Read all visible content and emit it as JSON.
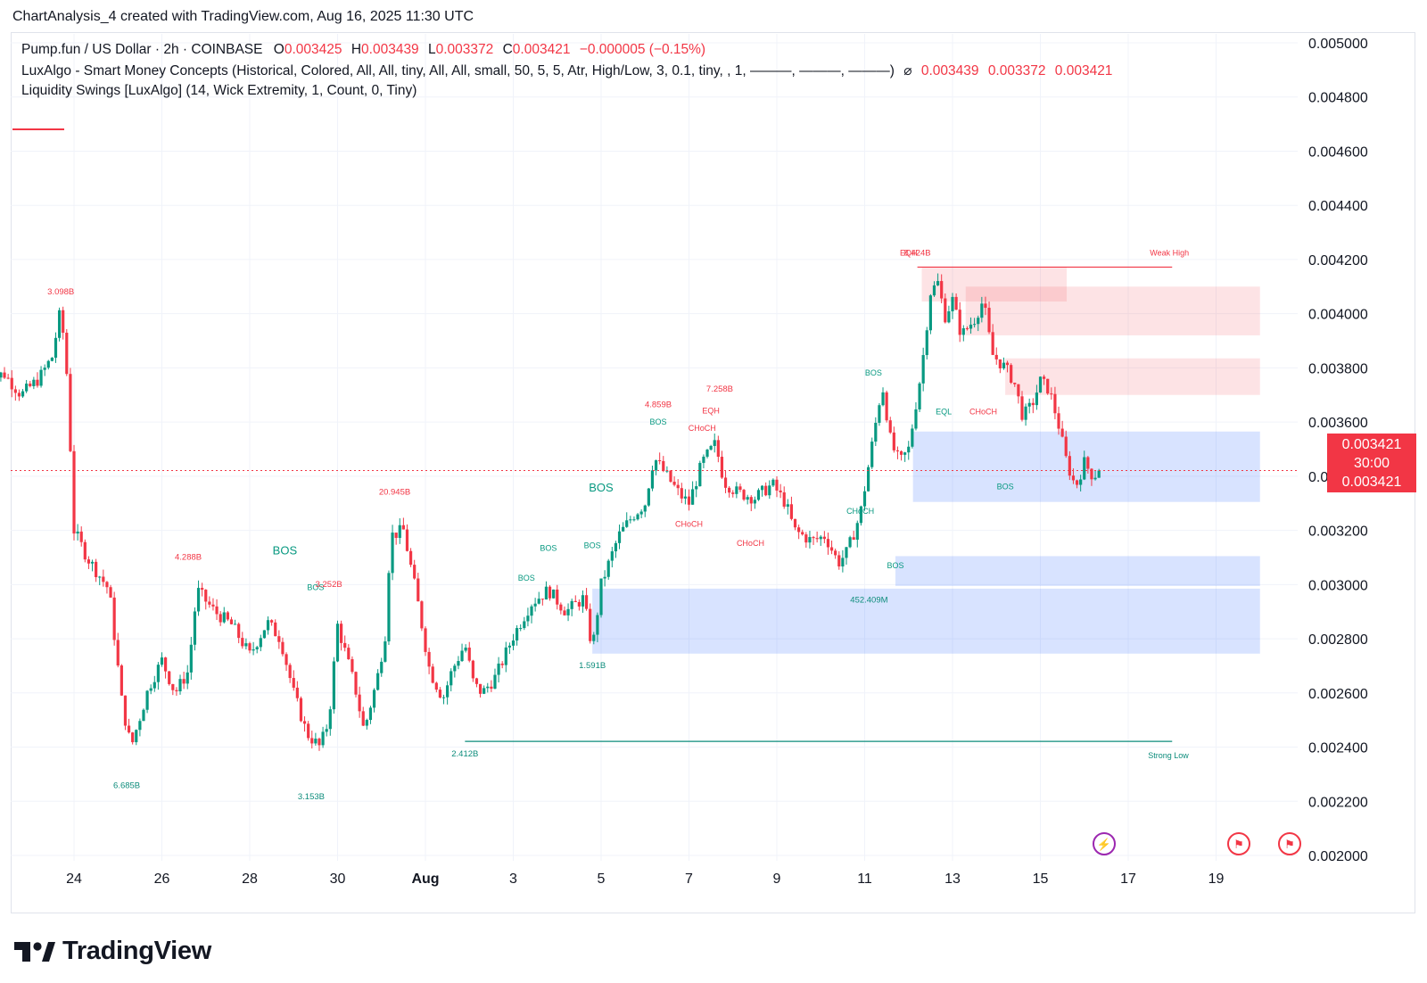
{
  "header": {
    "credit": "ChartAnalysis_4 created with TradingView.com, Aug 16, 2025 11:30 UTC"
  },
  "legend": {
    "symbol": "Pump.fun / US Dollar · 2h · COINBASE",
    "o_label": "O",
    "o_value": "0.003425",
    "h_label": "H",
    "h_value": "0.003439",
    "l_label": "L",
    "l_value": "0.003372",
    "c_label": "C",
    "c_value": "0.003421",
    "change": "−0.000005 (−0.15%)",
    "indicator1": "LuxAlgo - Smart Money Concepts (Historical, Colored, All, All, tiny, All, All, small, 50, 5, 5, Atr, High/Low, 3, 0.1, tiny, , 1, ———, ———, ———)",
    "indicator1_icon": "hidden-eye-icon",
    "indicator1_values": [
      "0.003439",
      "0.003372",
      "0.003421"
    ],
    "indicator2": "Liquidity Swings [LuxAlgo] (14, Wick Extremity, 1, Count, 0, Tiny)"
  },
  "price_tag": {
    "price": "0.003421",
    "countdown": "30:00",
    "value": "0.003421"
  },
  "brand": {
    "name": "TradingView"
  },
  "colors": {
    "up": "#089981",
    "down": "#f23645",
    "grid": "#f0f3fa",
    "bull_zone": "#2962ff",
    "bear_zone": "#f23645",
    "swing_teal": "#0c8c7b"
  },
  "chart_data": {
    "type": "candlestick",
    "symbol": "Pump.fun / US Dollar",
    "interval": "2h",
    "exchange": "COINBASE",
    "y_axis": {
      "min": 0.002,
      "max": 0.005,
      "ticks": [
        "0.005000",
        "0.004800",
        "0.004600",
        "0.004400",
        "0.004200",
        "0.004000",
        "0.003800",
        "0.003600",
        "0.003400",
        "0.003200",
        "0.003000",
        "0.002800",
        "0.002600",
        "0.002400",
        "0.002200",
        "0.002000"
      ]
    },
    "x_axis": {
      "ticks": [
        {
          "label": "24",
          "day": 24
        },
        {
          "label": "26",
          "day": 26
        },
        {
          "label": "28",
          "day": 28
        },
        {
          "label": "30",
          "day": 30
        },
        {
          "label": "Aug",
          "day": 32,
          "bold": true
        },
        {
          "label": "3",
          "day": 34
        },
        {
          "label": "5",
          "day": 36
        },
        {
          "label": "7",
          "day": 38
        },
        {
          "label": "9",
          "day": 40
        },
        {
          "label": "11",
          "day": 42
        },
        {
          "label": "13",
          "day": 44
        },
        {
          "label": "15",
          "day": 46
        },
        {
          "label": "17",
          "day": 48
        },
        {
          "label": "19",
          "day": 50
        }
      ],
      "note": "day index: Jul = day, Aug = 31 + day"
    },
    "last_price": 0.003421,
    "price_path": [
      [
        22.0,
        0.00375
      ],
      [
        22.4,
        0.00378
      ],
      [
        22.8,
        0.0037
      ],
      [
        23.2,
        0.00376
      ],
      [
        23.5,
        0.00384
      ],
      [
        23.7,
        0.00402
      ],
      [
        23.85,
        0.00375
      ],
      [
        24.0,
        0.0032
      ],
      [
        24.3,
        0.0031
      ],
      [
        24.8,
        0.00298
      ],
      [
        25.1,
        0.00255
      ],
      [
        25.3,
        0.0024
      ],
      [
        25.7,
        0.00262
      ],
      [
        26.0,
        0.00272
      ],
      [
        26.3,
        0.0026
      ],
      [
        26.6,
        0.00268
      ],
      [
        26.8,
        0.00298
      ],
      [
        27.2,
        0.0029
      ],
      [
        27.6,
        0.00285
      ],
      [
        28.0,
        0.00274
      ],
      [
        28.4,
        0.00286
      ],
      [
        28.7,
        0.0028
      ],
      [
        29.0,
        0.0026
      ],
      [
        29.3,
        0.00245
      ],
      [
        29.6,
        0.0024
      ],
      [
        29.8,
        0.0025
      ],
      [
        30.0,
        0.00285
      ],
      [
        30.4,
        0.00262
      ],
      [
        30.6,
        0.00246
      ],
      [
        30.9,
        0.00265
      ],
      [
        31.1,
        0.00283
      ],
      [
        31.2,
        0.00318
      ],
      [
        31.5,
        0.0032
      ],
      [
        31.8,
        0.00296
      ],
      [
        32.1,
        0.00268
      ],
      [
        32.4,
        0.00258
      ],
      [
        32.6,
        0.00268
      ],
      [
        32.9,
        0.00278
      ],
      [
        33.1,
        0.00263
      ],
      [
        33.3,
        0.0026
      ],
      [
        33.6,
        0.00266
      ],
      [
        34.0,
        0.00281
      ],
      [
        34.4,
        0.00293
      ],
      [
        34.8,
        0.00298
      ],
      [
        35.2,
        0.0029
      ],
      [
        35.6,
        0.00295
      ],
      [
        35.8,
        0.00276
      ],
      [
        36.0,
        0.003
      ],
      [
        36.4,
        0.00318
      ],
      [
        36.7,
        0.00325
      ],
      [
        37.0,
        0.0033
      ],
      [
        37.2,
        0.00347
      ],
      [
        37.5,
        0.0034
      ],
      [
        37.8,
        0.00333
      ],
      [
        38.0,
        0.0033
      ],
      [
        38.3,
        0.00345
      ],
      [
        38.6,
        0.00352
      ],
      [
        38.8,
        0.00338
      ],
      [
        39.1,
        0.00334
      ],
      [
        39.5,
        0.00332
      ],
      [
        39.9,
        0.00337
      ],
      [
        40.2,
        0.0033
      ],
      [
        40.4,
        0.0032
      ],
      [
        40.8,
        0.00316
      ],
      [
        41.1,
        0.00318
      ],
      [
        41.4,
        0.00308
      ],
      [
        41.6,
        0.00312
      ],
      [
        41.9,
        0.00326
      ],
      [
        42.1,
        0.00345
      ],
      [
        42.4,
        0.00374
      ],
      [
        42.6,
        0.00352
      ],
      [
        42.8,
        0.00345
      ],
      [
        43.0,
        0.0035
      ],
      [
        43.3,
        0.0038
      ],
      [
        43.5,
        0.00408
      ],
      [
        43.7,
        0.00412
      ],
      [
        43.8,
        0.00398
      ],
      [
        44.0,
        0.00405
      ],
      [
        44.2,
        0.00392
      ],
      [
        44.5,
        0.00398
      ],
      [
        44.7,
        0.00405
      ],
      [
        44.9,
        0.00385
      ],
      [
        45.2,
        0.0038
      ],
      [
        45.4,
        0.00375
      ],
      [
        45.6,
        0.00362
      ],
      [
        45.8,
        0.00366
      ],
      [
        46.0,
        0.00375
      ],
      [
        46.2,
        0.00372
      ],
      [
        46.4,
        0.0036
      ],
      [
        46.6,
        0.00345
      ],
      [
        46.8,
        0.00336
      ],
      [
        47.0,
        0.00345
      ],
      [
        47.2,
        0.0034
      ],
      [
        47.35,
        0.003421
      ]
    ],
    "annotations": {
      "bos": [
        {
          "label": "BOS",
          "day": 28.8,
          "price": 0.003112,
          "size": "large"
        },
        {
          "label": "BOS",
          "day": 36.0,
          "price": 0.003343,
          "size": "large"
        },
        {
          "label": "BOS",
          "day": 29.5,
          "price": 0.00298
        },
        {
          "label": "BOS",
          "day": 34.3,
          "price": 0.003015
        },
        {
          "label": "BOS",
          "day": 34.8,
          "price": 0.003124
        },
        {
          "label": "BOS",
          "day": 35.8,
          "price": 0.003135
        },
        {
          "label": "BOS",
          "day": 37.3,
          "price": 0.00359
        },
        {
          "label": "BOS",
          "day": 42.2,
          "price": 0.003771
        },
        {
          "label": "BOS",
          "day": 42.7,
          "price": 0.00306
        },
        {
          "label": "BOS",
          "day": 45.2,
          "price": 0.003352
        }
      ],
      "choch": [
        {
          "label": "CHoCH",
          "day": 38.3,
          "price": 0.003567
        },
        {
          "label": "CHoCH",
          "day": 38.0,
          "price": 0.003213
        },
        {
          "label": "CHoCH",
          "day": 39.4,
          "price": 0.003143
        },
        {
          "label": "CHoCH",
          "day": 41.9,
          "price": 0.003262
        },
        {
          "label": "CHoCH",
          "day": 44.7,
          "price": 0.003629
        }
      ],
      "eq": [
        {
          "label": "EQL",
          "day": 43.8,
          "price": 0.003629
        },
        {
          "label": "EQH",
          "day": 43.0,
          "price": 0.004214
        },
        {
          "label": "EQH",
          "day": 38.5,
          "price": 0.003632
        }
      ],
      "liquidity_counts": [
        {
          "label": "3.098B",
          "day": 23.7,
          "price": 0.004072,
          "side": "high"
        },
        {
          "label": "4.288B",
          "day": 26.6,
          "price": 0.003092,
          "side": "high"
        },
        {
          "label": "20.945B",
          "day": 31.3,
          "price": 0.003332,
          "side": "high"
        },
        {
          "label": "3.252B",
          "day": 29.8,
          "price": 0.002992,
          "side": "high"
        },
        {
          "label": "4.859B",
          "day": 37.3,
          "price": 0.003654,
          "side": "high"
        },
        {
          "label": "7.258B",
          "day": 38.7,
          "price": 0.003712,
          "side": "high"
        },
        {
          "label": "8.424B",
          "day": 43.2,
          "price": 0.004214,
          "side": "high"
        },
        {
          "label": "6.685B",
          "day": 25.2,
          "price": 0.002248,
          "side": "low"
        },
        {
          "label": "3.153B",
          "day": 29.4,
          "price": 0.002208,
          "side": "low"
        },
        {
          "label": "2.412B",
          "day": 32.9,
          "price": 0.002366,
          "side": "low"
        },
        {
          "label": "1.591B",
          "day": 35.8,
          "price": 0.002692,
          "side": "low"
        },
        {
          "label": "452.409M",
          "day": 42.1,
          "price": 0.002933,
          "side": "low"
        }
      ],
      "strong_low": {
        "label": "Strong Low",
        "price": 0.002421,
        "start_day": 32.9,
        "end_day": 49.0
      },
      "weak_high": {
        "label": "Weak High",
        "price": 0.004172,
        "start_day": 43.2,
        "end_day": 49.0
      }
    },
    "zones": {
      "bullish_order_blocks": [
        {
          "day_start": 35.8,
          "day_end": 51.0,
          "top": 0.002985,
          "bottom": 0.002745
        },
        {
          "day_start": 42.7,
          "day_end": 51.0,
          "top": 0.003105,
          "bottom": 0.002995
        },
        {
          "day_start": 43.1,
          "day_end": 51.0,
          "top": 0.003565,
          "bottom": 0.003305
        }
      ],
      "bearish_order_blocks": [
        {
          "day_start": 44.3,
          "day_end": 51.0,
          "top": 0.0041,
          "bottom": 0.00392
        },
        {
          "day_start": 45.2,
          "day_end": 51.0,
          "top": 0.003835,
          "bottom": 0.0037
        },
        {
          "day_start": 43.3,
          "day_end": 46.6,
          "top": 0.004172,
          "bottom": 0.004045
        }
      ]
    }
  }
}
